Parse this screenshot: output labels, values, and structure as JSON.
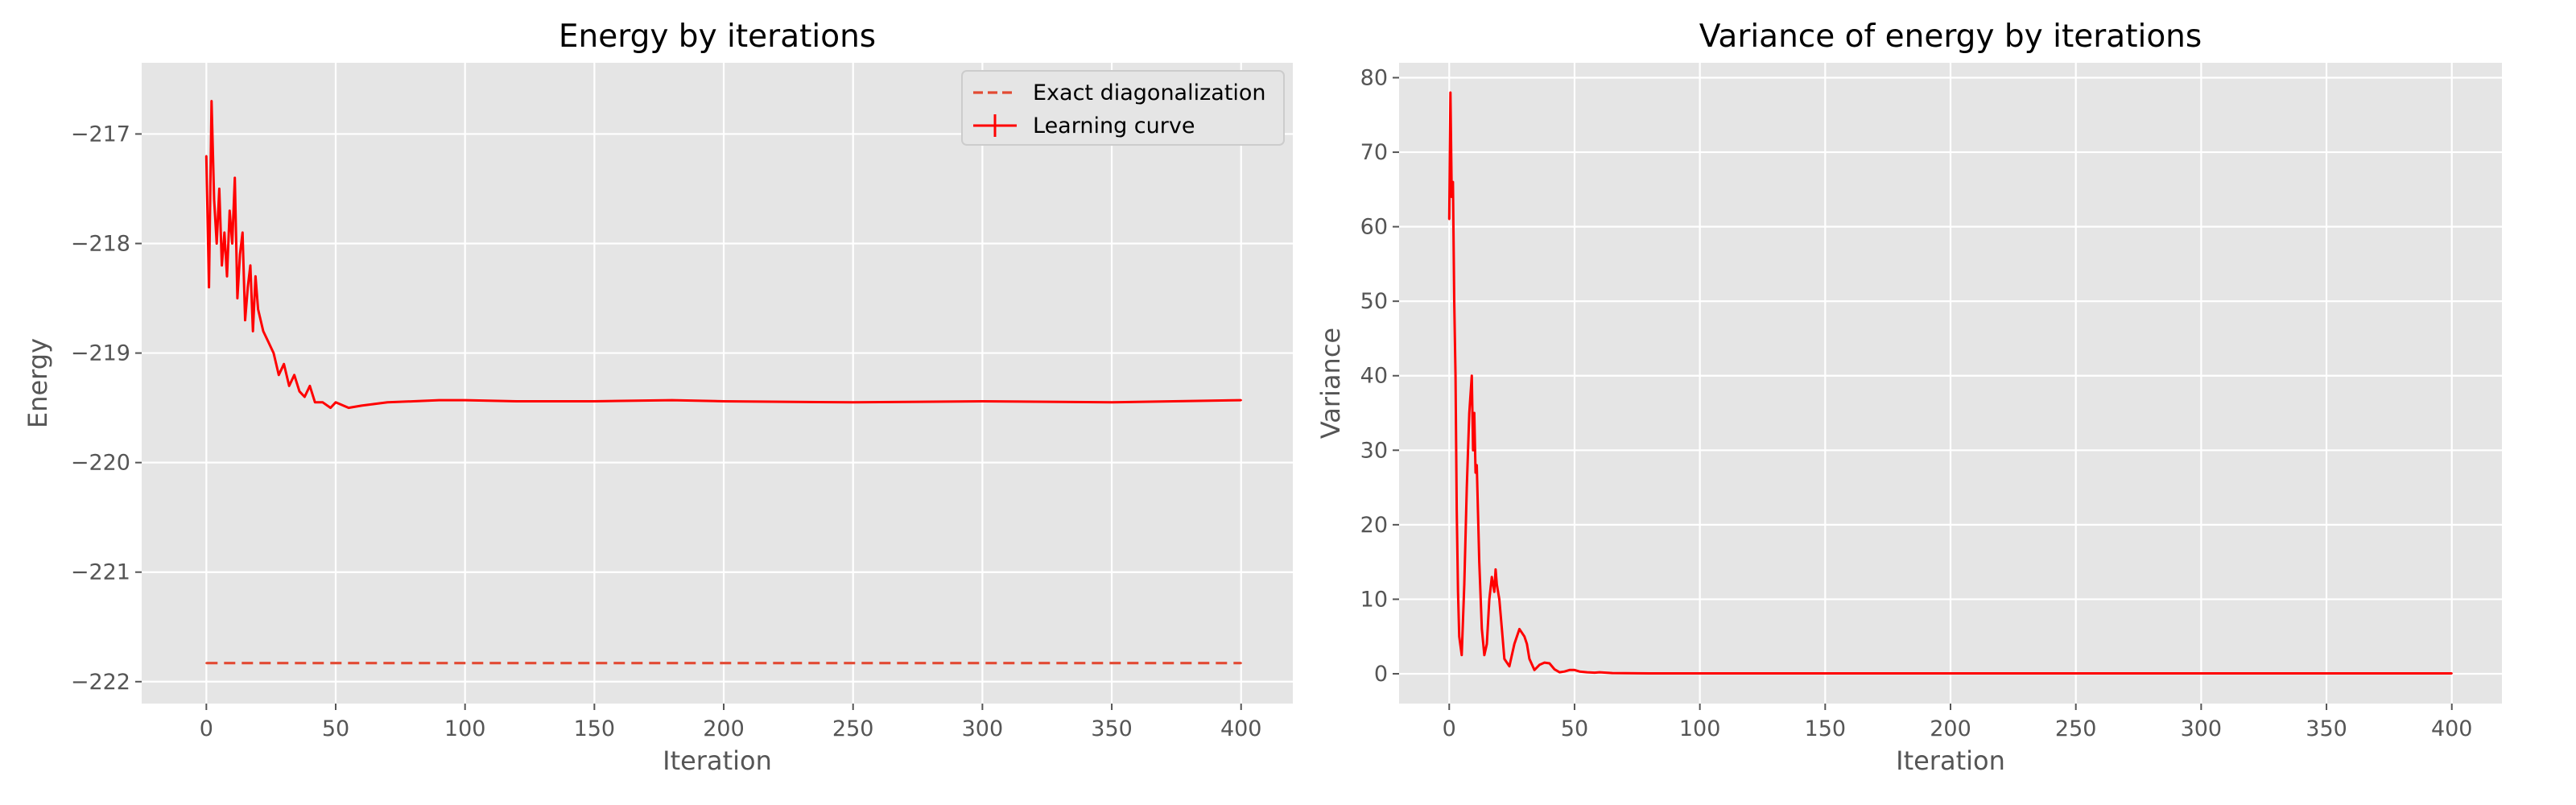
{
  "figure": {
    "background": "#ffffff"
  },
  "style": {
    "panel_bg": "#e5e5e5",
    "grid": "#ffffff",
    "series_color": "#ff0000",
    "exact_color": "#e24a33",
    "legend_bg": "#e5e5e5",
    "legend_edge": "#cccccc"
  },
  "chart_data": [
    {
      "type": "line",
      "title": "Energy by iterations",
      "xlabel": "Iteration",
      "ylabel": "Energy",
      "xlim": [
        -25,
        420
      ],
      "ylim": [
        -222.2,
        -216.35
      ],
      "xticks": [
        0,
        50,
        100,
        150,
        200,
        250,
        300,
        350,
        400
      ],
      "xtick_labels": [
        "0",
        "50",
        "100",
        "150",
        "200",
        "250",
        "300",
        "350",
        "400"
      ],
      "yticks": [
        -222,
        -221,
        -220,
        -219,
        -218,
        -217
      ],
      "ytick_labels": [
        "−222",
        "−221",
        "−220",
        "−219",
        "−218",
        "−217"
      ],
      "grid": true,
      "legend": {
        "position": "top-right",
        "entries": [
          "Exact diagonalization",
          "Learning curve"
        ]
      },
      "series": [
        {
          "name": "Exact diagonalization",
          "style": "dashed",
          "x": [
            0,
            400
          ],
          "y": [
            -221.83,
            -221.83
          ]
        },
        {
          "name": "Learning curve",
          "style": "solid-errorbars",
          "x": [
            0,
            1,
            2,
            3,
            4,
            5,
            6,
            7,
            8,
            9,
            10,
            11,
            12,
            13,
            14,
            15,
            16,
            17,
            18,
            19,
            20,
            22,
            24,
            26,
            28,
            30,
            32,
            34,
            36,
            38,
            40,
            42,
            45,
            48,
            50,
            55,
            60,
            70,
            80,
            90,
            100,
            120,
            150,
            180,
            200,
            250,
            300,
            350,
            400
          ],
          "y": [
            -217.2,
            -218.4,
            -216.7,
            -217.6,
            -218.0,
            -217.5,
            -218.2,
            -217.9,
            -218.3,
            -217.7,
            -218.0,
            -217.4,
            -218.5,
            -218.1,
            -217.9,
            -218.7,
            -218.4,
            -218.2,
            -218.8,
            -218.3,
            -218.6,
            -218.8,
            -218.9,
            -219.0,
            -219.2,
            -219.1,
            -219.3,
            -219.2,
            -219.35,
            -219.4,
            -219.3,
            -219.45,
            -219.45,
            -219.5,
            -219.45,
            -219.5,
            -219.48,
            -219.45,
            -219.44,
            -219.43,
            -219.43,
            -219.44,
            -219.44,
            -219.43,
            -219.44,
            -219.45,
            -219.44,
            -219.45,
            -219.43
          ]
        }
      ]
    },
    {
      "type": "line",
      "title": "Variance of energy by iterations",
      "xlabel": "Iteration",
      "ylabel": "Variance",
      "xlim": [
        -20,
        420
      ],
      "ylim": [
        -4,
        82
      ],
      "xticks": [
        0,
        50,
        100,
        150,
        200,
        250,
        300,
        350,
        400
      ],
      "xtick_labels": [
        "0",
        "50",
        "100",
        "150",
        "200",
        "250",
        "300",
        "350",
        "400"
      ],
      "yticks": [
        0,
        10,
        20,
        30,
        40,
        50,
        60,
        70,
        80
      ],
      "ytick_labels": [
        "0",
        "10",
        "20",
        "30",
        "40",
        "50",
        "60",
        "70",
        "80"
      ],
      "grid": true,
      "series": [
        {
          "style": "solid",
          "x": [
            0,
            0.5,
            1,
            1.5,
            2,
            2.5,
            3,
            3.5,
            4,
            5,
            6,
            7,
            8,
            9,
            9.5,
            10,
            10.5,
            11,
            12,
            13,
            14,
            15,
            16,
            17,
            18,
            18.5,
            19,
            20,
            21,
            22,
            24,
            26,
            28,
            30,
            31,
            32,
            34,
            36,
            38,
            40,
            42,
            44,
            46,
            48,
            50,
            52,
            55,
            58,
            60,
            65,
            70,
            80,
            100,
            150,
            200,
            250,
            300,
            350,
            400
          ],
          "y": [
            61,
            78,
            64,
            66,
            50,
            40,
            22,
            11,
            5,
            2.5,
            12,
            25,
            35,
            40,
            30,
            35,
            27,
            28,
            15,
            6,
            2.5,
            4,
            10,
            13,
            11,
            14,
            12,
            10,
            6,
            2,
            1,
            4,
            6,
            5,
            4,
            2,
            0.5,
            1.2,
            1.5,
            1.4,
            0.6,
            0.2,
            0.3,
            0.5,
            0.5,
            0.3,
            0.2,
            0.15,
            0.2,
            0.1,
            0.08,
            0.05,
            0.05,
            0.05,
            0.05,
            0.05,
            0.05,
            0.05,
            0.05
          ]
        }
      ]
    }
  ]
}
